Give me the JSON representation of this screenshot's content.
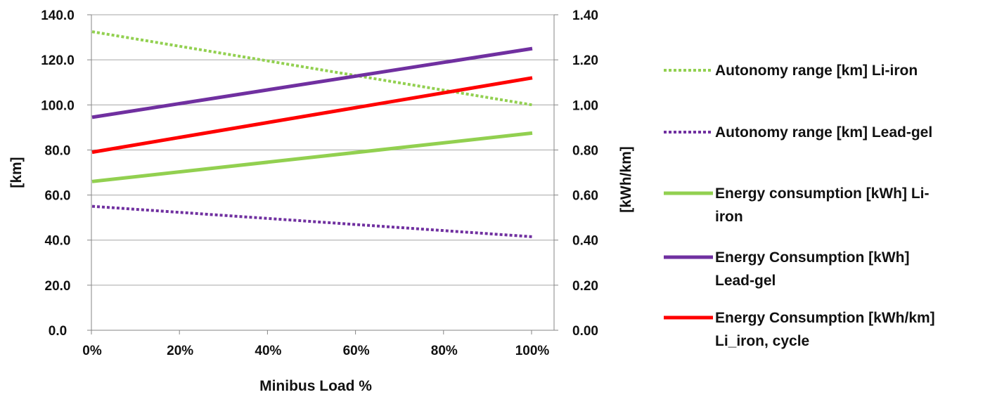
{
  "chart_data": {
    "type": "line",
    "xlabel": "Minibus Load %",
    "ylabel_left": "[km]",
    "ylabel_right": "[kWh/km]",
    "x": [
      "0%",
      "20%",
      "40%",
      "60%",
      "80%",
      "100%"
    ],
    "x_values": [
      0,
      20,
      40,
      60,
      80,
      100
    ],
    "ylim_left": [
      0,
      140
    ],
    "ylim_right": [
      0,
      1.4
    ],
    "yticks_left": [
      "0.0",
      "20.0",
      "40.0",
      "60.0",
      "80.0",
      "100.0",
      "120.0",
      "140.0"
    ],
    "yticks_right": [
      "0.00",
      "0.20",
      "0.40",
      "0.60",
      "0.80",
      "1.00",
      "1.20",
      "1.40"
    ],
    "grid": true,
    "legend_position": "right",
    "series": [
      {
        "name_lines": [
          "Autonomy range [km] Li-iron"
        ],
        "axis": "left",
        "style": "dotted",
        "color": "#92D050",
        "points": [
          [
            0,
            132.5
          ],
          [
            100,
            100.0
          ]
        ]
      },
      {
        "name_lines": [
          "Autonomy range [km] Lead-gel"
        ],
        "axis": "left",
        "style": "dotted",
        "color": "#7030A0",
        "points": [
          [
            0,
            55.0
          ],
          [
            100,
            41.5
          ]
        ]
      },
      {
        "name_lines": [
          "Energy consumption [kWh] Li-",
          "iron"
        ],
        "axis": "right",
        "style": "solid",
        "color": "#92D050",
        "points": [
          [
            0,
            0.66
          ],
          [
            100,
            0.875
          ]
        ]
      },
      {
        "name_lines": [
          "Energy Consumption [kWh]",
          "Lead-gel"
        ],
        "axis": "right",
        "style": "solid",
        "color": "#7030A0",
        "points": [
          [
            0,
            0.945
          ],
          [
            100,
            1.25
          ]
        ]
      },
      {
        "name_lines": [
          "Energy Consumption [kWh/km]",
          "Li_iron, cycle"
        ],
        "axis": "right",
        "style": "solid",
        "color": "#FF0000",
        "points": [
          [
            0,
            0.79
          ],
          [
            100,
            1.12
          ]
        ]
      }
    ]
  }
}
